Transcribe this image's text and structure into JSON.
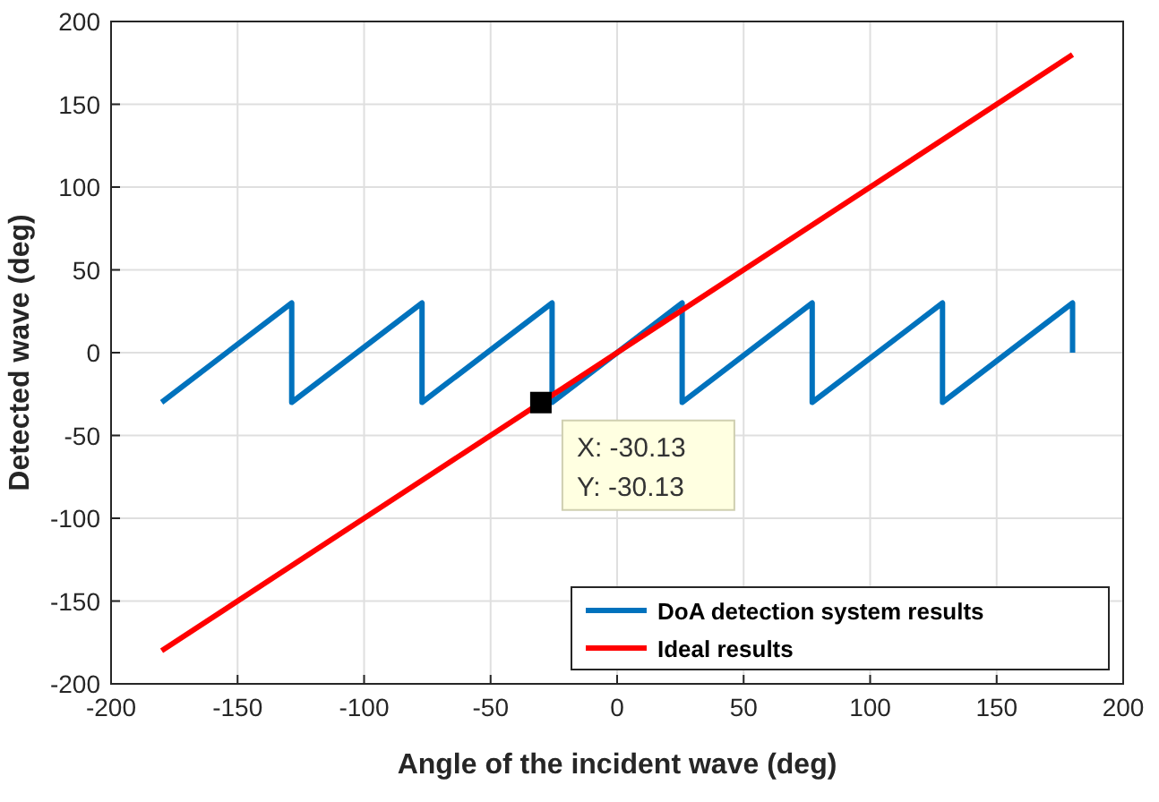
{
  "chart_data": {
    "type": "line",
    "xlabel": "Angle of the incident wave (deg)",
    "ylabel": "Detected wave (deg)",
    "xlim": [
      -200,
      200
    ],
    "ylim": [
      -200,
      200
    ],
    "xticks": [
      -200,
      -150,
      -100,
      -50,
      0,
      50,
      100,
      150,
      200
    ],
    "yticks": [
      -200,
      -150,
      -100,
      -50,
      0,
      50,
      100,
      150,
      200
    ],
    "grid": true,
    "legend": "bottom right",
    "line_style": "solid",
    "marker": "none",
    "series": [
      {
        "name": "DoA detection system results",
        "color": "#0072bd",
        "x": [
          -180,
          -128.6,
          -128.6,
          -77.1,
          -77.1,
          -25.7,
          -25.7,
          25.7,
          25.7,
          77.1,
          77.1,
          128.6,
          128.6,
          180,
          180
        ],
        "values": [
          -30,
          30,
          -30,
          30,
          -30,
          30,
          -30,
          30,
          -30,
          30,
          -30,
          30,
          -30,
          30,
          0
        ]
      },
      {
        "name": "Ideal results",
        "color": "#ff0000",
        "x": [
          -180,
          180
        ],
        "values": [
          -180,
          180
        ]
      }
    ],
    "annotations": [
      {
        "text": "X: -30.13\nY: -30.13",
        "x": -30.13,
        "y": -30.13
      }
    ]
  }
}
